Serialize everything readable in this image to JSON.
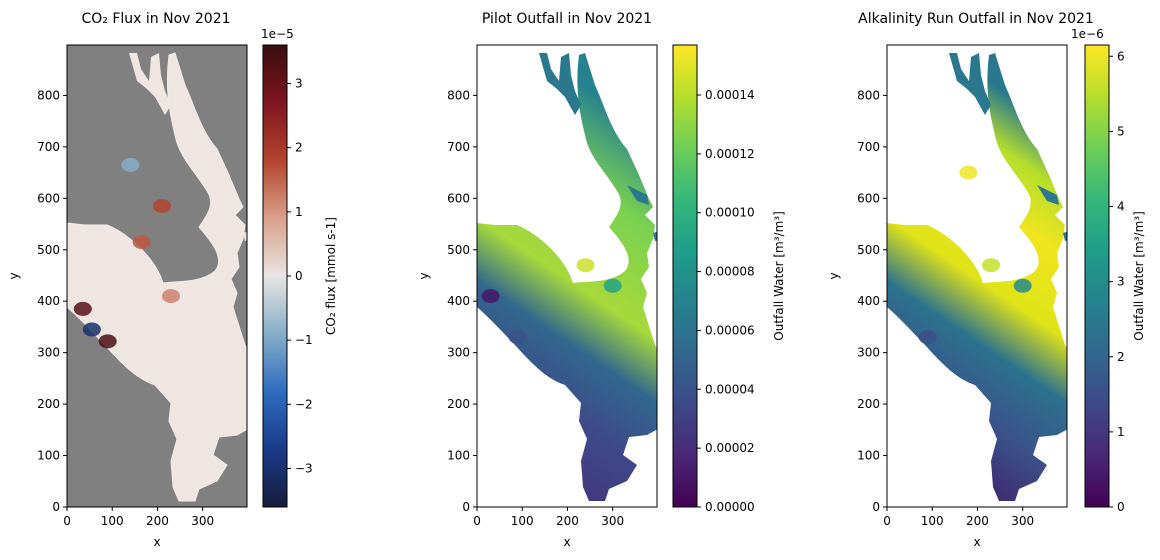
{
  "chart_data": [
    {
      "type": "heatmap",
      "title": "CO₂ Flux in Nov 2021",
      "xlabel": "x",
      "ylabel": "y",
      "xlim": [
        0,
        398
      ],
      "ylim": [
        0,
        898
      ],
      "xticks": [
        0,
        100,
        200,
        300
      ],
      "yticks": [
        0,
        100,
        200,
        300,
        400,
        500,
        600,
        700,
        800
      ],
      "background": "#808080",
      "colormap": "balance",
      "colorbar": {
        "label": "CO₂ flux [mmol s-1]",
        "range": [
          -3.6e-05,
          3.6e-05
        ],
        "ticks": [
          -3,
          -2,
          -1,
          0,
          1,
          2,
          3
        ],
        "offset_text": "1e−5",
        "colors": [
          "#171d3a",
          "#1a3b8a",
          "#2f6cc0",
          "#86aec8",
          "#e8e4e2",
          "#d9a08a",
          "#b4442f",
          "#7e1520",
          "#3a0e10"
        ]
      },
      "features": [
        {
          "x": 35,
          "y": 385,
          "value": 3.2e-05
        },
        {
          "x": 55,
          "y": 345,
          "value": -3e-05
        },
        {
          "x": 90,
          "y": 322,
          "value": 3.4e-05
        },
        {
          "x": 165,
          "y": 515,
          "value": 1.6e-05
        },
        {
          "x": 210,
          "y": 585,
          "value": 1.8e-05
        },
        {
          "x": 140,
          "y": 665,
          "value": -9e-06
        },
        {
          "x": 230,
          "y": 410,
          "value": 1.2e-05
        }
      ]
    },
    {
      "type": "heatmap",
      "title": "Pilot Outfall in Nov 2021",
      "xlabel": "x",
      "ylabel": "y",
      "xlim": [
        0,
        398
      ],
      "ylim": [
        0,
        898
      ],
      "xticks": [
        0,
        100,
        200,
        300
      ],
      "yticks": [
        0,
        100,
        200,
        300,
        400,
        500,
        600,
        700,
        800
      ],
      "background": "#ffffff",
      "colormap": "viridis",
      "colorbar": {
        "label": "Outfall Water [m³/m³]",
        "range": [
          0,
          0.000157
        ],
        "ticks": [
          "0.00000",
          "0.00002",
          "0.00004",
          "0.00006",
          "0.00008",
          "0.00010",
          "0.00012",
          "0.00014"
        ],
        "offset_text": "",
        "colors": [
          "#440154",
          "#482878",
          "#3e4989",
          "#31688e",
          "#26828e",
          "#1f9e89",
          "#35b779",
          "#6ece58",
          "#b5de2b",
          "#fde725"
        ]
      },
      "features": [
        {
          "x": 240,
          "y": 470,
          "value": 0.000145
        },
        {
          "x": 300,
          "y": 430,
          "value": 9e-05
        },
        {
          "x": 90,
          "y": 330,
          "value": 4e-05
        },
        {
          "x": 30,
          "y": 410,
          "value": 1e-05
        }
      ]
    },
    {
      "type": "heatmap",
      "title": "Alkalinity Run Outfall in Nov 2021",
      "xlabel": "x",
      "ylabel": "y",
      "xlim": [
        0,
        398
      ],
      "ylim": [
        0,
        898
      ],
      "xticks": [
        0,
        100,
        200,
        300
      ],
      "yticks": [
        0,
        100,
        200,
        300,
        400,
        500,
        600,
        700,
        800
      ],
      "background": "#ffffff",
      "colormap": "viridis",
      "colorbar": {
        "label": "Outfall Water [m³/m³]",
        "range": [
          0,
          6.15e-06
        ],
        "ticks": [
          0,
          1,
          2,
          3,
          4,
          5,
          6
        ],
        "offset_text": "1e−6",
        "colors": [
          "#440154",
          "#482878",
          "#3e4989",
          "#31688e",
          "#26828e",
          "#1f9e89",
          "#35b779",
          "#6ece58",
          "#b5de2b",
          "#fde725"
        ]
      },
      "features": [
        {
          "x": 180,
          "y": 650,
          "value": 6e-06
        },
        {
          "x": 230,
          "y": 470,
          "value": 5.6e-06
        },
        {
          "x": 300,
          "y": 430,
          "value": 3e-06
        },
        {
          "x": 90,
          "y": 330,
          "value": 1.5e-06
        }
      ]
    }
  ]
}
